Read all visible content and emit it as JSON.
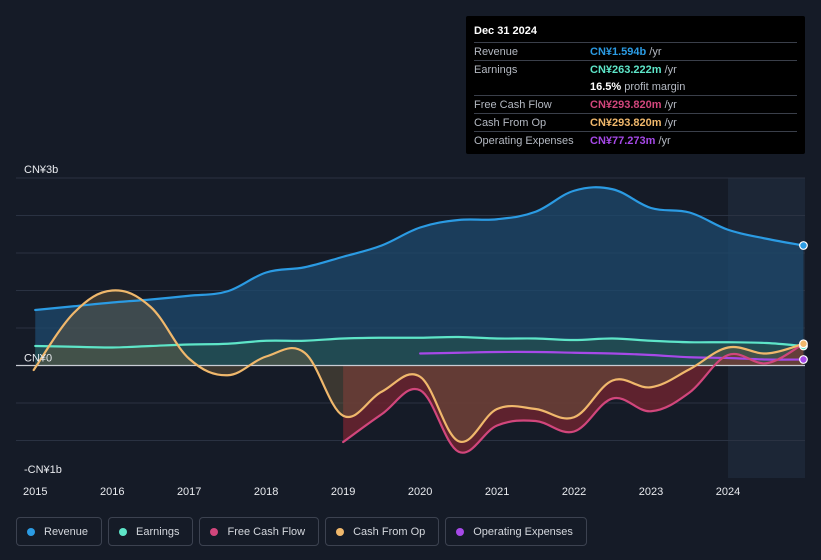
{
  "tooltip": {
    "date": "Dec 31 2024",
    "rows": [
      {
        "label": "Revenue",
        "value": "CN¥1.594b",
        "unit": "/yr",
        "color": "#2b9be3"
      },
      {
        "label": "Earnings",
        "value": "CN¥263.222m",
        "unit": "/yr",
        "color": "#5ee5c8"
      },
      {
        "label": "",
        "value": "16.5%",
        "unit": "profit margin",
        "color": "#ffffff"
      },
      {
        "label": "Free Cash Flow",
        "value": "CN¥293.820m",
        "unit": "/yr",
        "color": "#d1467c"
      },
      {
        "label": "Cash From Op",
        "value": "CN¥293.820m",
        "unit": "/yr",
        "color": "#f0b86c"
      },
      {
        "label": "Operating Expenses",
        "value": "CN¥77.273m",
        "unit": "/yr",
        "color": "#a649e8"
      }
    ]
  },
  "legend": [
    {
      "label": "Revenue",
      "color": "#2b9be3"
    },
    {
      "label": "Earnings",
      "color": "#5ee5c8"
    },
    {
      "label": "Free Cash Flow",
      "color": "#d1467c"
    },
    {
      "label": "Cash From Op",
      "color": "#f0b86c"
    },
    {
      "label": "Operating Expenses",
      "color": "#a649e8"
    }
  ],
  "chart_data": {
    "type": "area",
    "title": "",
    "xlabel": "",
    "ylabel": "",
    "ylim": [
      -1.5,
      2.5
    ],
    "xlim": [
      2014.75,
      2025.0
    ],
    "y_tick_labels": [
      {
        "label": "CN¥3b",
        "value": 2.5
      },
      {
        "label": "CN¥0",
        "value": 0
      },
      {
        "label": "-CN¥1b",
        "value": -1.5
      }
    ],
    "x_ticks": [
      2015,
      2016,
      2017,
      2018,
      2019,
      2020,
      2021,
      2022,
      2023,
      2024
    ],
    "forecast_start": 2024.0,
    "series": [
      {
        "name": "Revenue",
        "color": "#2b9be3",
        "points": [
          [
            2015,
            0.74
          ],
          [
            2015.5,
            0.79
          ],
          [
            2016,
            0.84
          ],
          [
            2016.5,
            0.88
          ],
          [
            2017,
            0.93
          ],
          [
            2017.5,
            0.99
          ],
          [
            2018,
            1.24
          ],
          [
            2018.5,
            1.31
          ],
          [
            2019,
            1.45
          ],
          [
            2019.5,
            1.6
          ],
          [
            2020,
            1.84
          ],
          [
            2020.5,
            1.94
          ],
          [
            2021,
            1.95
          ],
          [
            2021.5,
            2.05
          ],
          [
            2022,
            2.33
          ],
          [
            2022.5,
            2.35
          ],
          [
            2023,
            2.1
          ],
          [
            2023.5,
            2.04
          ],
          [
            2024,
            1.81
          ],
          [
            2024.5,
            1.69
          ],
          [
            2024.98,
            1.6
          ]
        ]
      },
      {
        "name": "Earnings",
        "color": "#5ee5c8",
        "points": [
          [
            2015,
            0.26
          ],
          [
            2015.5,
            0.25
          ],
          [
            2016,
            0.24
          ],
          [
            2016.5,
            0.26
          ],
          [
            2017,
            0.28
          ],
          [
            2017.5,
            0.29
          ],
          [
            2018,
            0.33
          ],
          [
            2018.5,
            0.33
          ],
          [
            2019,
            0.36
          ],
          [
            2019.5,
            0.37
          ],
          [
            2020,
            0.37
          ],
          [
            2020.5,
            0.38
          ],
          [
            2021,
            0.36
          ],
          [
            2021.5,
            0.36
          ],
          [
            2022,
            0.34
          ],
          [
            2022.5,
            0.36
          ],
          [
            2023,
            0.33
          ],
          [
            2023.5,
            0.31
          ],
          [
            2024,
            0.31
          ],
          [
            2024.5,
            0.3
          ],
          [
            2024.98,
            0.26
          ]
        ]
      },
      {
        "name": "Free Cash Flow",
        "color": "#d1467c",
        "points": [
          [
            2019,
            -1.02
          ],
          [
            2019.5,
            -0.65
          ],
          [
            2020,
            -0.33
          ],
          [
            2020.5,
            -1.15
          ],
          [
            2021,
            -0.8
          ],
          [
            2021.5,
            -0.74
          ],
          [
            2022,
            -0.88
          ],
          [
            2022.5,
            -0.44
          ],
          [
            2023,
            -0.61
          ],
          [
            2023.5,
            -0.36
          ],
          [
            2024,
            0.14
          ],
          [
            2024.5,
            0.03
          ],
          [
            2024.98,
            0.29
          ]
        ]
      },
      {
        "name": "Cash From Op",
        "color": "#f0b86c",
        "points": [
          [
            2014.98,
            -0.06
          ],
          [
            2015.5,
            0.7
          ],
          [
            2016,
            1.0
          ],
          [
            2016.5,
            0.78
          ],
          [
            2017,
            0.09
          ],
          [
            2017.5,
            -0.13
          ],
          [
            2018,
            0.12
          ],
          [
            2018.5,
            0.17
          ],
          [
            2019,
            -0.67
          ],
          [
            2019.5,
            -0.35
          ],
          [
            2020,
            -0.15
          ],
          [
            2020.5,
            -1.01
          ],
          [
            2021,
            -0.58
          ],
          [
            2021.5,
            -0.58
          ],
          [
            2022,
            -0.69
          ],
          [
            2022.5,
            -0.2
          ],
          [
            2023,
            -0.29
          ],
          [
            2023.5,
            -0.05
          ],
          [
            2024,
            0.24
          ],
          [
            2024.5,
            0.16
          ],
          [
            2024.98,
            0.29
          ]
        ]
      },
      {
        "name": "Operating Expenses",
        "color": "#a649e8",
        "points": [
          [
            2020,
            0.16
          ],
          [
            2020.5,
            0.17
          ],
          [
            2021,
            0.18
          ],
          [
            2021.5,
            0.18
          ],
          [
            2022,
            0.17
          ],
          [
            2022.5,
            0.16
          ],
          [
            2023,
            0.14
          ],
          [
            2023.5,
            0.11
          ],
          [
            2024,
            0.1
          ],
          [
            2024.5,
            0.08
          ],
          [
            2024.98,
            0.08
          ]
        ]
      }
    ]
  }
}
